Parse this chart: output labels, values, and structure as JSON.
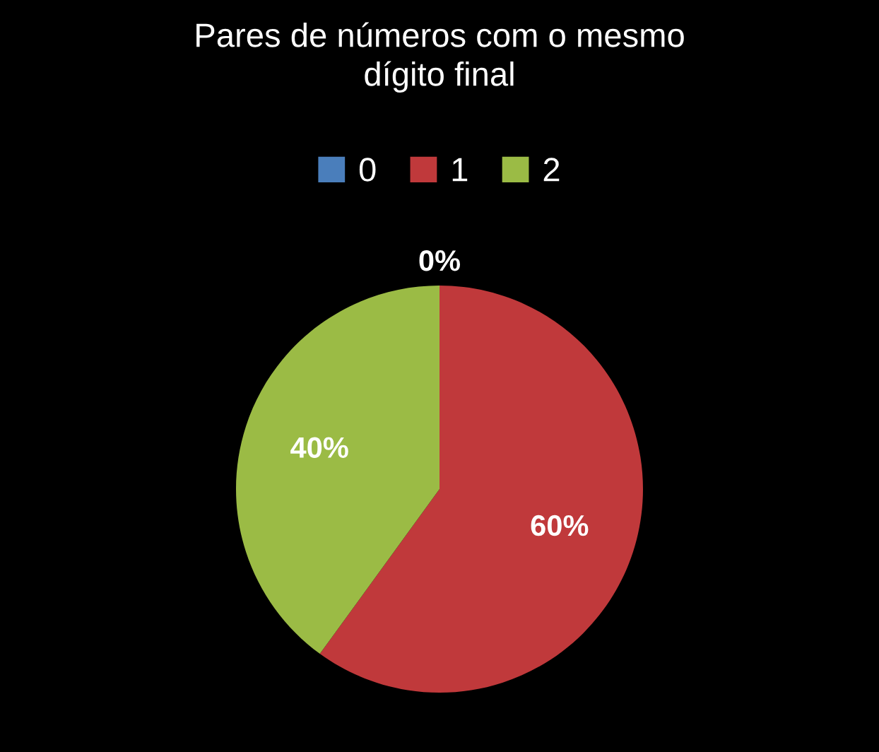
{
  "chart_data": {
    "type": "pie",
    "title": "Pares de números com o mesmo dígito final",
    "categories": [
      "0",
      "1",
      "2"
    ],
    "values": [
      0,
      60,
      40
    ],
    "colors": [
      "#4a7ebb",
      "#c0393b",
      "#9bbb45"
    ],
    "value_labels": [
      "0%",
      "60%",
      "40%"
    ],
    "legend": "top"
  }
}
